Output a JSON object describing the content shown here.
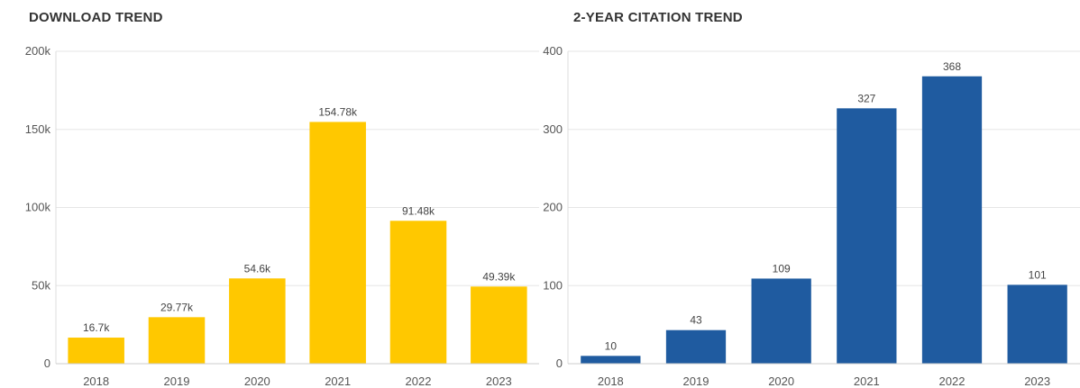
{
  "chart_data": [
    {
      "type": "bar",
      "title": "DOWNLOAD TREND",
      "categories": [
        "2018",
        "2019",
        "2020",
        "2021",
        "2022",
        "2023"
      ],
      "values": [
        16700,
        29770,
        54600,
        154780,
        91480,
        49390
      ],
      "data_labels": [
        "16.7k",
        "29.77k",
        "54.6k",
        "154.78k",
        "91.48k",
        "49.39k"
      ],
      "ylim": [
        0,
        200000
      ],
      "yticks": [
        0,
        50000,
        100000,
        150000,
        200000
      ],
      "ytick_labels": [
        "0",
        "50k",
        "100k",
        "150k",
        "200k"
      ],
      "color": "#FFC800",
      "grid": true
    },
    {
      "type": "bar",
      "title": "2-YEAR CITATION TREND",
      "categories": [
        "2018",
        "2019",
        "2020",
        "2021",
        "2022",
        "2023"
      ],
      "values": [
        10,
        43,
        109,
        327,
        368,
        101
      ],
      "data_labels": [
        "10",
        "43",
        "109",
        "327",
        "368",
        "101"
      ],
      "ylim": [
        0,
        400
      ],
      "yticks": [
        0,
        100,
        200,
        300,
        400
      ],
      "ytick_labels": [
        "0",
        "100",
        "200",
        "300",
        "400"
      ],
      "color": "#1F5BA0",
      "grid": true
    }
  ]
}
